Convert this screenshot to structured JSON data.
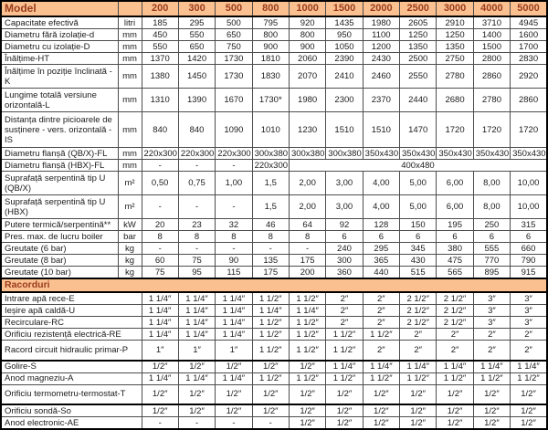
{
  "colors": {
    "header_bg": "#FAC090",
    "header_text": "#9A3B1C",
    "grid_border": "#4d4d4d",
    "outer_border": "#000000"
  },
  "table": {
    "header": {
      "model_label": "Model",
      "unit_header": "",
      "columns": [
        "200",
        "300",
        "500",
        "800",
        "1000",
        "1500",
        "2000",
        "2500",
        "3000",
        "4000",
        "5000"
      ]
    },
    "sections": [
      {
        "title": null,
        "rows": [
          {
            "label": "Capacitate efectivă",
            "unit": "litri",
            "values": [
              "185",
              "295",
              "500",
              "795",
              "920",
              "1435",
              "1980",
              "2605",
              "2910",
              "3710",
              "4945"
            ]
          },
          {
            "label": "Diametru fără izolație-d",
            "unit": "mm",
            "values": [
              "450",
              "550",
              "650",
              "800",
              "800",
              "950",
              "1100",
              "1250",
              "1250",
              "1400",
              "1600"
            ]
          },
          {
            "label": "Diametru cu izolație-D",
            "unit": "mm",
            "values": [
              "550",
              "650",
              "750",
              "900",
              "900",
              "1050",
              "1200",
              "1350",
              "1350",
              "1500",
              "1700"
            ]
          },
          {
            "label": "Înălțime-HT",
            "unit": "mm",
            "values": [
              "1370",
              "1420",
              "1730",
              "1810",
              "2060",
              "2390",
              "2430",
              "2500",
              "2750",
              "2800",
              "2830"
            ]
          },
          {
            "label": "Înălțime în poziție înclinată - K",
            "unit": "mm",
            "h": 26,
            "values": [
              "1380",
              "1450",
              "1730",
              "1830",
              "2070",
              "2410",
              "2460",
              "2550",
              "2780",
              "2860",
              "2920"
            ]
          },
          {
            "label": "Lungime totală versiune orizontală-L",
            "unit": "mm",
            "h": 26,
            "values": [
              "1310",
              "1390",
              "1670",
              "1730*",
              "1980",
              "2300",
              "2370",
              "2440",
              "2680",
              "2780",
              "2860"
            ]
          },
          {
            "label": "Distanța dintre picioarele de susținere - vers. orizontală - IS",
            "unit": "mm",
            "h": 39,
            "values": [
              "840",
              "840",
              "1090",
              "1010",
              "1230",
              "1510",
              "1510",
              "1470",
              "1720",
              "1720",
              "1720"
            ]
          },
          {
            "label": "Diametru flanșă (QB/X)-FL",
            "unit": "mm",
            "values": [
              "220x300",
              "220x300",
              "220x300",
              "300x380",
              "300x380",
              "300x380",
              "350x430",
              "350x430",
              "350x430",
              "350x430",
              "350x430"
            ]
          },
          {
            "label": "Diametru flanșă (HBX)-FL",
            "unit": "mm",
            "values": [
              "-",
              "-",
              "-",
              "220x300",
              {
                "text": "400x480",
                "span": 7
              }
            ]
          },
          {
            "label": "Suprafață serpentină tip U (QB/X)",
            "unit": "m²",
            "h": 26,
            "values": [
              "0,50",
              "0,75",
              "1,00",
              "1,5",
              "2,00",
              "3,00",
              "4,00",
              "5,00",
              "6,00",
              "8,00",
              "10,00"
            ]
          },
          {
            "label": "Suprafață serpentină tip U (HBX)",
            "unit": "m²",
            "h": 26,
            "values": [
              "-",
              "-",
              "-",
              "1,5",
              "2,00",
              "3,00",
              "4,00",
              "5,00",
              "6,00",
              "8,00",
              "10,00"
            ]
          },
          {
            "label": "Putere termică/serpentină**",
            "unit": "kW",
            "values": [
              "20",
              "23",
              "32",
              "46",
              "64",
              "92",
              "128",
              "150",
              "195",
              "250",
              "315"
            ]
          },
          {
            "label": "Pres. max. de lucru boiler",
            "unit": "bar",
            "values": [
              "8",
              "8",
              "8",
              "8",
              "8",
              "6",
              "6",
              "6",
              "6",
              "6",
              "6"
            ]
          },
          {
            "label": "Greutate (6 bar)",
            "unit": "kg",
            "values": [
              "-",
              "-",
              "-",
              "-",
              "-",
              "240",
              "295",
              "345",
              "380",
              "555",
              "660"
            ]
          },
          {
            "label": "Greutate (8 bar)",
            "unit": "kg",
            "values": [
              "60",
              "75",
              "90",
              "135",
              "175",
              "300",
              "365",
              "430",
              "475",
              "770",
              "790"
            ]
          },
          {
            "label": "Greutate (10 bar)",
            "unit": "kg",
            "values": [
              "75",
              "95",
              "115",
              "175",
              "200",
              "360",
              "440",
              "515",
              "565",
              "895",
              "915"
            ]
          }
        ]
      },
      {
        "title": "Racorduri",
        "rows": [
          {
            "label": "Intrare apă rece-E",
            "values": [
              "1 1/4″",
              "1 1/4″",
              "1 1/4″",
              "1 1/2″",
              "1 1/2″",
              "2″",
              "2″",
              "2 1/2″",
              "2 1/2″",
              "3″",
              "3″"
            ]
          },
          {
            "label": "Ieșire apă caldă-U",
            "values": [
              "1 1/4″",
              "1 1/4″",
              "1 1/4″",
              "1 1/4″",
              "1 1/4″",
              "2″",
              "2″",
              "2 1/2″",
              "2 1/2″",
              "3″",
              "3″"
            ]
          },
          {
            "label": "Recirculare-RC",
            "values": [
              "1 1/4″",
              "1 1/4″",
              "1 1/4″",
              "1 1/2″",
              "1 1/2″",
              "2″",
              "2″",
              "2 1/2″",
              "2 1/2″",
              "3″",
              "3″"
            ]
          },
          {
            "label": "Orificiu rezistență electrică-RE",
            "values": [
              "1 1/4″",
              "1 1/4″",
              "1 1/4″",
              "1 1/2″",
              "1 1/2″",
              "1 1/2″",
              "1 1/2″",
              "2″",
              "2″",
              "2″",
              "2″"
            ]
          },
          {
            "label": "Racord circuit hidraulic primar-P",
            "h": 22,
            "values": [
              "1″",
              "1″",
              "1″",
              "1 1/2″",
              "1 1/2″",
              "1 1/2″",
              "2″",
              "2″",
              "2″",
              "2″",
              "2″"
            ]
          },
          {
            "label": "Golire-S",
            "thick_top": true,
            "values": [
              "1/2″",
              "1/2″",
              "1/2″",
              "1/2″",
              "1/2″",
              "1 1/4″",
              "1 1/4″",
              "1 1/4″",
              "1 1/4″",
              "1 1/4″",
              "1 1/4″"
            ]
          },
          {
            "label": "Anod magneziu-A",
            "values": [
              "1 1/4″",
              "1 1/4″",
              "1 1/4″",
              "1 1/2″",
              "1 1/2″",
              "1 1/2″",
              "1 1/2″",
              "1 1/2″",
              "1 1/2″",
              "1 1/2″",
              "1 1/2″"
            ]
          },
          {
            "label": "Orificiu termometru-termostat-T",
            "h": 22,
            "values": [
              "1/2″",
              "1/2″",
              "1/2″",
              "1/2″",
              "1/2″",
              "1/2″",
              "1/2″",
              "1/2″",
              "1/2″",
              "1/2″",
              "1/2″"
            ]
          },
          {
            "label": "Orificiu sondă-So",
            "thick_top": true,
            "values": [
              "1/2″",
              "1/2″",
              "1/2″",
              "1/2″",
              "1/2″",
              "1/2″",
              "1/2″",
              "1/2″",
              "1/2″",
              "1/2″",
              "1/2″"
            ]
          },
          {
            "label": "Anod electronic-AE",
            "values": [
              "-",
              "-",
              "-",
              "-",
              "1/2″",
              "1/2″",
              "1/2″",
              "1/2″",
              "1/2″",
              "1/2″",
              "1/2″"
            ]
          }
        ]
      }
    ]
  }
}
